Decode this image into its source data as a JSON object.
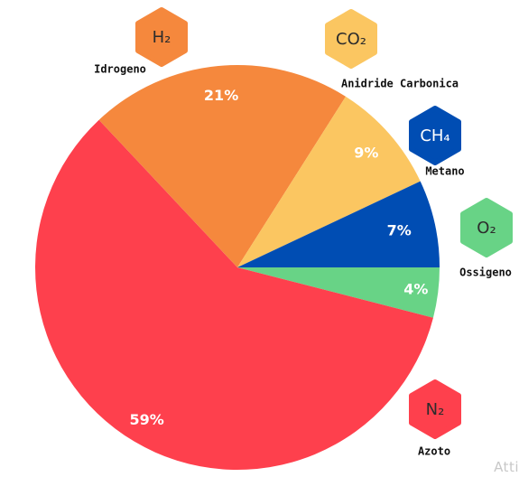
{
  "chart_data": {
    "type": "pie",
    "title": "",
    "slices": [
      {
        "label": "Ossigeno",
        "formula": "O₂",
        "value": 4,
        "pct_label": "4%",
        "color": "#68d386"
      },
      {
        "label": "Azoto",
        "formula": "N₂",
        "value": 59,
        "pct_label": "59%",
        "color": "#fe404d"
      },
      {
        "label": "Idrogeno",
        "formula": "H₂",
        "value": 21,
        "pct_label": "21%",
        "color": "#f5883d"
      },
      {
        "label": "Anidride Carbonica",
        "formula": "CO₂",
        "value": 9,
        "pct_label": "9%",
        "color": "#fbc661"
      },
      {
        "label": "Metano",
        "formula": "CH₄",
        "value": 7,
        "pct_label": "7%",
        "color": "#004db3"
      }
    ],
    "start_angle_deg": 0,
    "direction": "clockwise"
  },
  "watermark": "Atti"
}
